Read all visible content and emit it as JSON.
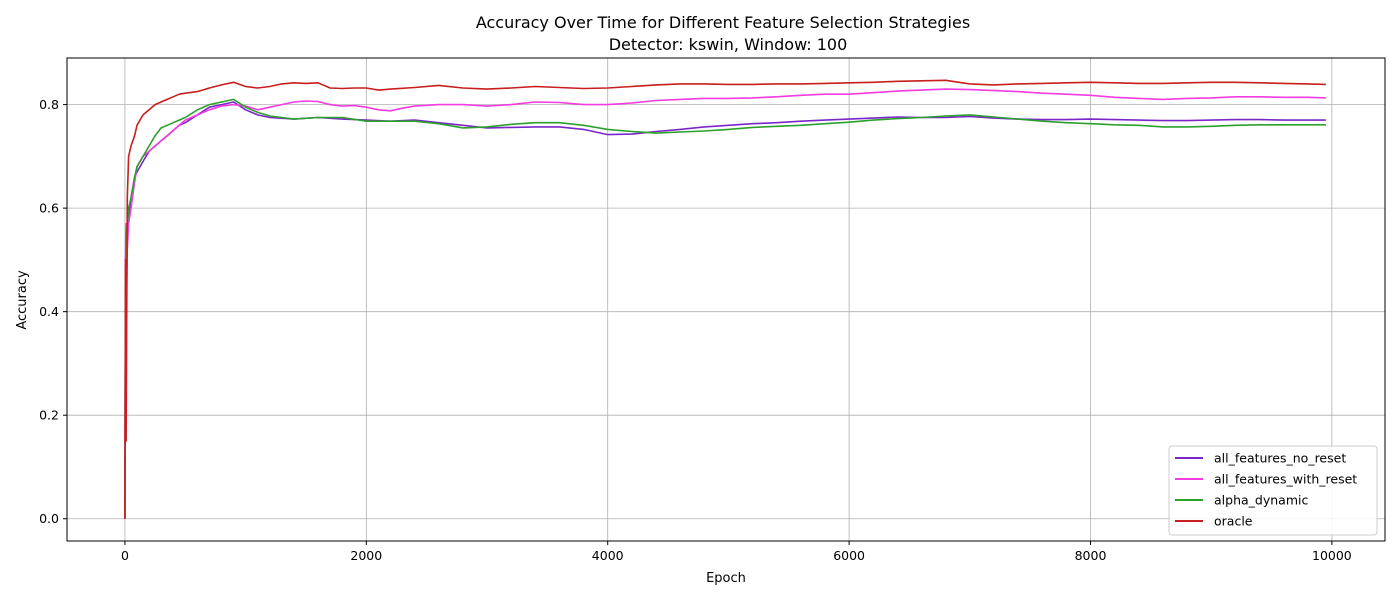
{
  "chart_data": {
    "type": "line",
    "title": "Accuracy Over Time for Different Feature Selection Strategies",
    "subtitle": "Detector: kswin, Window: 100",
    "xlabel": "Epoch",
    "ylabel": "Accuracy",
    "xlim": [
      -480,
      10440
    ],
    "ylim": [
      -0.043,
      0.89
    ],
    "xticks": [
      0,
      2000,
      4000,
      6000,
      8000,
      10000
    ],
    "xtick_labels": [
      "0",
      "2000",
      "4000",
      "6000",
      "8000",
      "10000"
    ],
    "yticks": [
      0.0,
      0.2,
      0.4,
      0.6,
      0.8
    ],
    "ytick_labels": [
      "0.0",
      "0.2",
      "0.4",
      "0.6",
      "0.8"
    ],
    "grid": true,
    "legend_position": "bottom-right",
    "series": [
      {
        "name": "all_features_no_reset",
        "color": "#7b26c8",
        "x": [
          0,
          5,
          10,
          20,
          30,
          50,
          80,
          100,
          150,
          200,
          250,
          300,
          350,
          400,
          450,
          500,
          600,
          700,
          800,
          900,
          1000,
          1100,
          1200,
          1400,
          1600,
          1800,
          2000,
          2200,
          2400,
          2600,
          2800,
          3000,
          3200,
          3400,
          3600,
          3800,
          4000,
          4200,
          4400,
          4600,
          4800,
          5000,
          5200,
          5400,
          5600,
          5800,
          6000,
          6200,
          6400,
          6600,
          6800,
          7000,
          7200,
          7400,
          7600,
          7800,
          8000,
          8200,
          8400,
          8600,
          8800,
          9000,
          9200,
          9400,
          9600,
          9800,
          9950
        ],
        "values": [
          0.0,
          0.45,
          0.36,
          0.55,
          0.58,
          0.62,
          0.66,
          0.67,
          0.69,
          0.71,
          0.72,
          0.73,
          0.74,
          0.75,
          0.76,
          0.765,
          0.78,
          0.795,
          0.8,
          0.805,
          0.79,
          0.78,
          0.775,
          0.772,
          0.775,
          0.772,
          0.77,
          0.768,
          0.77,
          0.765,
          0.76,
          0.755,
          0.756,
          0.757,
          0.757,
          0.752,
          0.742,
          0.743,
          0.748,
          0.752,
          0.757,
          0.76,
          0.763,
          0.765,
          0.768,
          0.77,
          0.772,
          0.774,
          0.776,
          0.775,
          0.775,
          0.777,
          0.774,
          0.772,
          0.771,
          0.771,
          0.772,
          0.771,
          0.77,
          0.769,
          0.769,
          0.77,
          0.771,
          0.771,
          0.77,
          0.77,
          0.77
        ]
      },
      {
        "name": "all_features_with_reset",
        "color": "#f23be0",
        "x": [
          0,
          5,
          10,
          20,
          30,
          50,
          80,
          100,
          150,
          200,
          250,
          300,
          350,
          400,
          450,
          500,
          600,
          700,
          800,
          900,
          1000,
          1100,
          1200,
          1300,
          1400,
          1500,
          1600,
          1700,
          1800,
          1900,
          2000,
          2100,
          2200,
          2300,
          2400,
          2600,
          2800,
          3000,
          3200,
          3400,
          3600,
          3800,
          4000,
          4200,
          4400,
          4600,
          4800,
          5000,
          5200,
          5400,
          5600,
          5800,
          6000,
          6200,
          6400,
          6600,
          6800,
          7000,
          7200,
          7400,
          7600,
          7800,
          8000,
          8200,
          8400,
          8600,
          8800,
          9000,
          9200,
          9400,
          9600,
          9800,
          9950
        ],
        "values": [
          0.0,
          0.5,
          0.57,
          0.52,
          0.57,
          0.6,
          0.65,
          0.68,
          0.7,
          0.71,
          0.72,
          0.73,
          0.74,
          0.75,
          0.76,
          0.77,
          0.78,
          0.79,
          0.797,
          0.8,
          0.797,
          0.79,
          0.795,
          0.8,
          0.805,
          0.807,
          0.806,
          0.8,
          0.797,
          0.798,
          0.795,
          0.79,
          0.788,
          0.793,
          0.797,
          0.8,
          0.8,
          0.797,
          0.8,
          0.805,
          0.804,
          0.8,
          0.8,
          0.803,
          0.808,
          0.81,
          0.812,
          0.812,
          0.813,
          0.815,
          0.818,
          0.82,
          0.82,
          0.823,
          0.826,
          0.828,
          0.83,
          0.829,
          0.827,
          0.825,
          0.822,
          0.82,
          0.818,
          0.814,
          0.812,
          0.81,
          0.812,
          0.813,
          0.815,
          0.815,
          0.814,
          0.814,
          0.813
        ]
      },
      {
        "name": "alpha_dynamic",
        "color": "#2ca02c",
        "x": [
          0,
          5,
          10,
          20,
          30,
          50,
          80,
          100,
          150,
          200,
          250,
          300,
          350,
          400,
          450,
          500,
          600,
          700,
          800,
          900,
          1000,
          1100,
          1200,
          1400,
          1600,
          1800,
          2000,
          2200,
          2400,
          2600,
          2800,
          3000,
          3200,
          3400,
          3600,
          3800,
          4000,
          4200,
          4400,
          4600,
          4800,
          5000,
          5200,
          5400,
          5600,
          5800,
          6000,
          6200,
          6400,
          6600,
          6800,
          7000,
          7200,
          7400,
          7600,
          7800,
          8000,
          8200,
          8400,
          8600,
          8800,
          9000,
          9200,
          9400,
          9600,
          9800,
          9950
        ],
        "values": [
          0.0,
          0.45,
          0.55,
          0.57,
          0.6,
          0.62,
          0.66,
          0.68,
          0.7,
          0.72,
          0.74,
          0.755,
          0.76,
          0.765,
          0.77,
          0.775,
          0.79,
          0.8,
          0.805,
          0.81,
          0.795,
          0.785,
          0.778,
          0.772,
          0.775,
          0.775,
          0.768,
          0.768,
          0.768,
          0.763,
          0.755,
          0.757,
          0.762,
          0.765,
          0.765,
          0.76,
          0.752,
          0.748,
          0.745,
          0.747,
          0.749,
          0.752,
          0.756,
          0.758,
          0.76,
          0.763,
          0.766,
          0.77,
          0.773,
          0.775,
          0.778,
          0.78,
          0.776,
          0.772,
          0.768,
          0.765,
          0.763,
          0.761,
          0.76,
          0.757,
          0.757,
          0.758,
          0.76,
          0.761,
          0.761,
          0.761,
          0.761
        ]
      },
      {
        "name": "oracle",
        "color": "#c81e1e",
        "x": [
          0,
          5,
          10,
          20,
          30,
          50,
          80,
          100,
          150,
          200,
          250,
          300,
          350,
          400,
          450,
          500,
          600,
          700,
          800,
          900,
          1000,
          1100,
          1200,
          1300,
          1400,
          1500,
          1600,
          1700,
          1800,
          1900,
          2000,
          2100,
          2200,
          2400,
          2600,
          2800,
          3000,
          3200,
          3400,
          3600,
          3800,
          4000,
          4200,
          4400,
          4600,
          4800,
          5000,
          5200,
          5400,
          5600,
          5800,
          6000,
          6200,
          6400,
          6600,
          6800,
          7000,
          7200,
          7400,
          7600,
          7800,
          8000,
          8200,
          8400,
          8600,
          8800,
          9000,
          9200,
          9400,
          9600,
          9800,
          9950
        ],
        "values": [
          0.0,
          0.5,
          0.15,
          0.62,
          0.7,
          0.72,
          0.74,
          0.76,
          0.78,
          0.79,
          0.8,
          0.805,
          0.81,
          0.815,
          0.82,
          0.822,
          0.825,
          0.832,
          0.838,
          0.843,
          0.835,
          0.832,
          0.835,
          0.84,
          0.842,
          0.841,
          0.842,
          0.832,
          0.831,
          0.832,
          0.832,
          0.828,
          0.83,
          0.833,
          0.837,
          0.832,
          0.83,
          0.832,
          0.835,
          0.833,
          0.831,
          0.832,
          0.835,
          0.838,
          0.84,
          0.84,
          0.839,
          0.839,
          0.84,
          0.84,
          0.841,
          0.842,
          0.843,
          0.845,
          0.846,
          0.847,
          0.84,
          0.838,
          0.84,
          0.841,
          0.842,
          0.843,
          0.842,
          0.841,
          0.841,
          0.842,
          0.843,
          0.843,
          0.842,
          0.841,
          0.84,
          0.839
        ]
      }
    ]
  }
}
